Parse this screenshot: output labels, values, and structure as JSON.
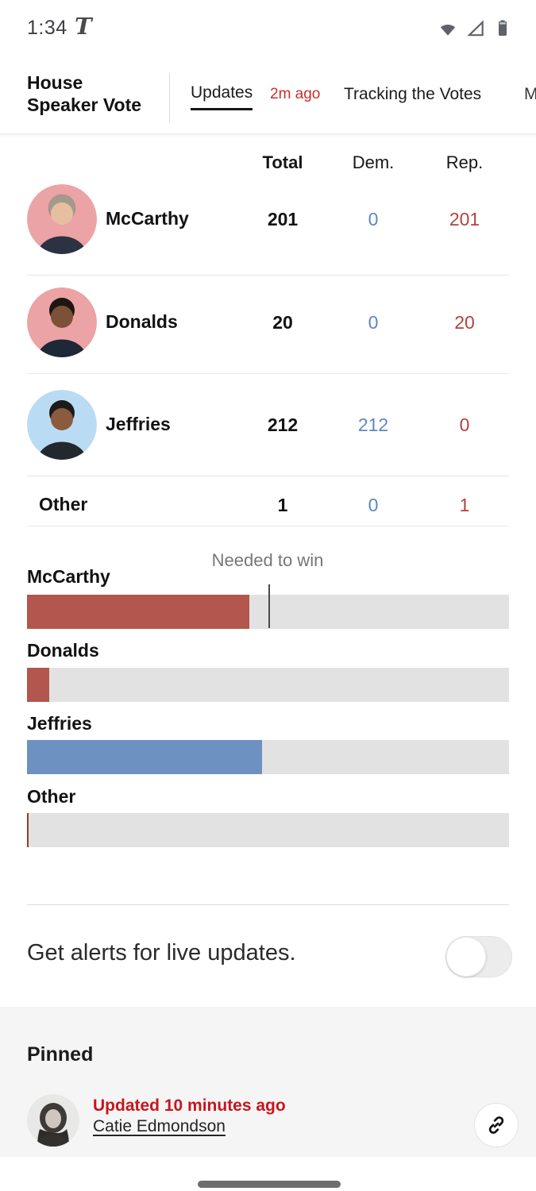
{
  "status_bar": {
    "time": "1:34",
    "logo": "T"
  },
  "header": {
    "title_line1": "House",
    "title_line2": "Speaker Vote",
    "tabs": [
      {
        "label": "Updates",
        "badge": "2m ago",
        "active": true
      },
      {
        "label": "Tracking the Votes",
        "active": false
      },
      {
        "label": "M",
        "active": false,
        "note": "partially visible at screen edge"
      }
    ]
  },
  "table": {
    "columns": [
      "Total",
      "Dem.",
      "Rep."
    ],
    "rows": [
      {
        "name": "McCarthy",
        "total": "201",
        "dem": "0",
        "rep": "201"
      },
      {
        "name": "Donalds",
        "total": "20",
        "dem": "0",
        "rep": "20"
      },
      {
        "name": "Jeffries",
        "total": "212",
        "dem": "212",
        "rep": "0"
      },
      {
        "name": "Other",
        "total": "1",
        "dem": "0",
        "rep": "1"
      }
    ]
  },
  "chart_data": {
    "type": "bar",
    "categories": [
      "McCarthy",
      "Donalds",
      "Jeffries",
      "Other"
    ],
    "values": [
      201,
      20,
      212,
      1
    ],
    "xlim": [
      0,
      435
    ],
    "needed_to_win": 218,
    "annotation": "Needed to win",
    "bar_colors": [
      "#b2564e",
      "#b2564e",
      "#6d92c1",
      "#9e362c"
    ],
    "track_color": "#e2e2e2",
    "labels": {
      "mccarthy": "McCarthy",
      "donalds": "Donalds",
      "jeffries": "Jeffries",
      "other": "Other"
    }
  },
  "alerts": {
    "label": "Get alerts for live updates.",
    "toggle_state": "off"
  },
  "pinned": {
    "heading": "Pinned",
    "updated": "Updated 10 minutes ago",
    "author": "Catie Edmondson",
    "link_icon": "link-icon"
  },
  "colors": {
    "accent_red": "#c5312d",
    "live_red": "#c7161c",
    "dem_blue": "#5e87c1",
    "rep_red": "#b5413b",
    "track": "#e2e2e2"
  }
}
